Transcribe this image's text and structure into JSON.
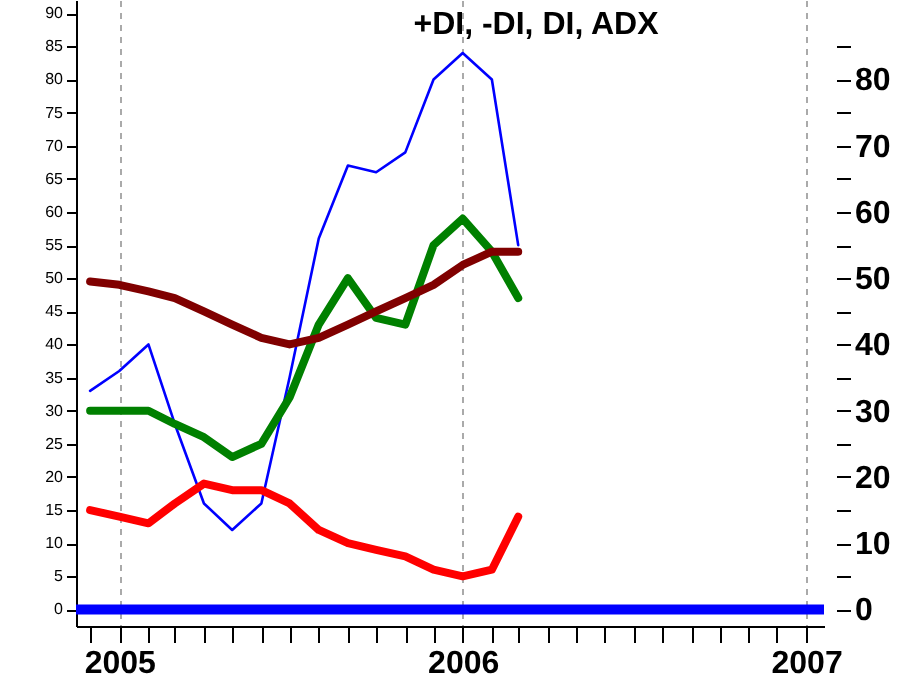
{
  "chart_data": {
    "type": "line",
    "title": "+DI, -DI, DI, ADX",
    "x": [
      "2004-12",
      "2005-01",
      "2005-02",
      "2005-03",
      "2005-04",
      "2005-05",
      "2005-06",
      "2005-07",
      "2005-08",
      "2005-09",
      "2005-10",
      "2005-11",
      "2005-12",
      "2006-01",
      "2006-02",
      "2006-03"
    ],
    "series": [
      {
        "color": "#0000ff",
        "values": [
          33,
          36,
          40,
          28,
          16,
          12,
          16,
          35,
          56,
          67,
          66,
          69,
          80,
          84,
          80,
          55
        ]
      },
      {
        "color": "#008000",
        "values": [
          30,
          30,
          30,
          28,
          26,
          23,
          25,
          32,
          43,
          50,
          44,
          43,
          55,
          59,
          54,
          47
        ]
      },
      {
        "color": "#ff0000",
        "values": [
          15,
          14,
          13,
          16,
          19,
          18,
          18,
          16,
          12,
          10,
          9,
          8,
          6,
          5,
          6,
          14
        ]
      },
      {
        "color": "#800000",
        "values": [
          49.5,
          49,
          48,
          47,
          45,
          43,
          41,
          40,
          41,
          43,
          45,
          47,
          49,
          52,
          54,
          54
        ]
      }
    ],
    "xlim": [
      "2004-11-16",
      "2007-01-20"
    ],
    "xticks": [
      {
        "value": "2004-12",
        "label": null
      },
      {
        "value": "2005-01",
        "label": "2005"
      },
      {
        "value": "2005-02",
        "label": null
      },
      {
        "value": "2005-03",
        "label": null
      },
      {
        "value": "2005-04",
        "label": null
      },
      {
        "value": "2005-05",
        "label": null
      },
      {
        "value": "2005-06",
        "label": null
      },
      {
        "value": "2005-07",
        "label": null
      },
      {
        "value": "2005-08",
        "label": null
      },
      {
        "value": "2005-09",
        "label": null
      },
      {
        "value": "2005-10",
        "label": null
      },
      {
        "value": "2005-11",
        "label": null
      },
      {
        "value": "2005-12",
        "label": null
      },
      {
        "value": "2006-01",
        "label": "2006"
      },
      {
        "value": "2006-02",
        "label": null
      },
      {
        "value": "2006-03",
        "label": null
      },
      {
        "value": "2006-04",
        "label": null
      },
      {
        "value": "2006-05",
        "label": null
      },
      {
        "value": "2006-06",
        "label": null
      },
      {
        "value": "2006-07",
        "label": null
      },
      {
        "value": "2006-08",
        "label": null
      },
      {
        "value": "2006-09",
        "label": null
      },
      {
        "value": "2006-10",
        "label": null
      },
      {
        "value": "2006-11",
        "label": null
      },
      {
        "value": "2006-12",
        "label": null
      },
      {
        "value": "2007-01",
        "label": "2007"
      }
    ],
    "ylim": [
      -2.5,
      92
    ],
    "yticks": [
      0,
      5,
      10,
      15,
      20,
      25,
      30,
      35,
      40,
      45,
      50,
      55,
      60,
      65,
      70,
      75,
      80,
      85,
      90
    ],
    "y2lim": [
      -2.5,
      92
    ],
    "y2ticks": [
      0,
      {
        "value": 5,
        "label": null
      },
      10,
      {
        "value": 15,
        "label": null
      },
      20,
      {
        "value": 25,
        "label": null
      },
      30,
      {
        "value": 35,
        "label": null
      },
      40,
      {
        "value": 45,
        "label": null
      },
      50,
      {
        "value": 55,
        "label": null
      },
      60,
      {
        "value": 65,
        "label": null
      },
      70,
      {
        "value": 75,
        "label": null
      },
      80,
      {
        "value": 85,
        "label": null
      }
    ],
    "ref_lines": [
      {
        "axis": "y",
        "value": 0,
        "color": "#0000ff"
      }
    ],
    "grid": "x"
  }
}
